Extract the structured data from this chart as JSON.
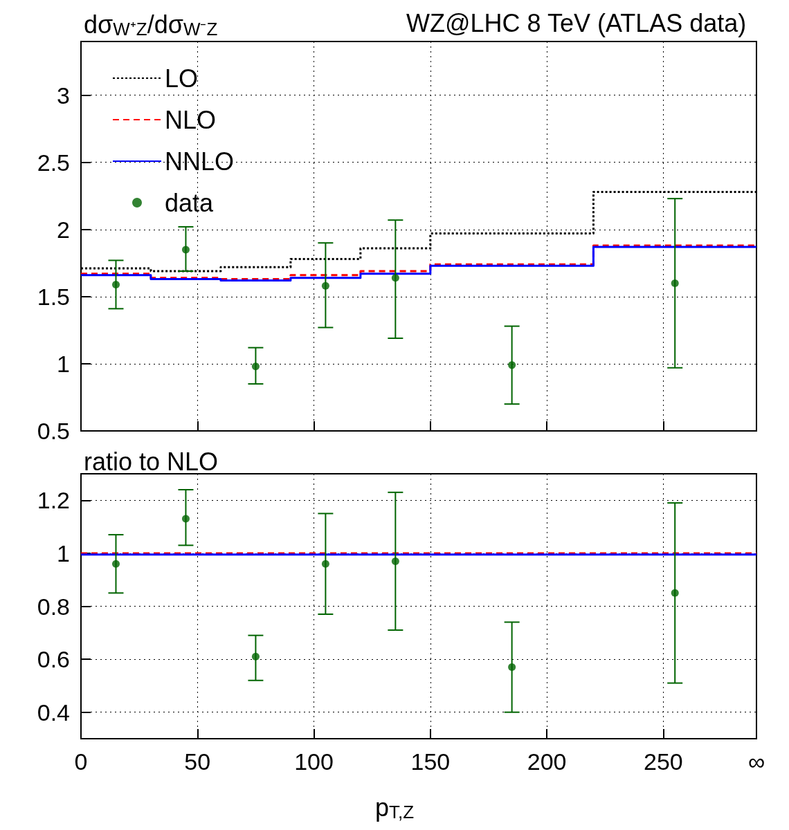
{
  "chart_data": [
    {
      "type": "step",
      "title": "WZ@LHC 8 TeV (ATLAS data)",
      "ylabel": "dσ$_{W⁺Z}$/dσ$_{W⁻Z}$",
      "xlim": [
        0,
        290
      ],
      "xticks": [
        0,
        50,
        100,
        150,
        200,
        250
      ],
      "ylim": [
        0.5,
        3.4
      ],
      "yticks": [
        0.5,
        1,
        1.5,
        2,
        2.5,
        3
      ],
      "grid": true,
      "legend": "top left",
      "tick_labels": "y",
      "series": [
        {
          "name": "LO",
          "color": "#000000",
          "line_style": "dotted",
          "marker": "none",
          "x": [
            0,
            30,
            60,
            90,
            120,
            150,
            220,
            290
          ],
          "values": [
            1.71,
            1.69,
            1.72,
            1.78,
            1.86,
            1.97,
            2.28,
            2.28
          ]
        },
        {
          "name": "NLO",
          "color": "#ff0000",
          "line_style": "dashed",
          "marker": "none",
          "x": [
            0,
            30,
            60,
            90,
            120,
            150,
            220,
            290
          ],
          "values": [
            1.67,
            1.64,
            1.63,
            1.66,
            1.69,
            1.74,
            1.88,
            1.88
          ]
        },
        {
          "name": "NNLO",
          "color": "#0000ff",
          "line_style": "solid",
          "marker": "none",
          "x": [
            0,
            30,
            60,
            90,
            120,
            150,
            220,
            290
          ],
          "values": [
            1.66,
            1.63,
            1.62,
            1.64,
            1.67,
            1.73,
            1.87,
            1.87
          ]
        },
        {
          "name": "data",
          "type": "scatter",
          "color": "#006400",
          "marker": "circle",
          "x": [
            15,
            45,
            75,
            105,
            135,
            185,
            255
          ],
          "values": [
            1.59,
            1.85,
            0.98,
            1.58,
            1.64,
            0.99,
            1.6
          ],
          "errors": [
            [
              1.41,
              1.77
            ],
            [
              1.69,
              2.02
            ],
            [
              0.85,
              1.12
            ],
            [
              1.27,
              1.9
            ],
            [
              1.19,
              2.07
            ],
            [
              0.7,
              1.28
            ],
            [
              0.97,
              2.23
            ]
          ]
        }
      ]
    },
    {
      "type": "step",
      "ylabel": "ratio to NLO",
      "xlabel": "p$_{T,Z}$",
      "xlim": [
        0,
        290
      ],
      "xticks": [
        0,
        50,
        100,
        150,
        200,
        250,
        {
          "value": 290,
          "label": "∞"
        }
      ],
      "ylim": [
        0.3,
        1.3
      ],
      "yticks": [
        0.4,
        0.6,
        0.8,
        1,
        1.2
      ],
      "grid": true,
      "series": [
        {
          "color": "#ff0000",
          "line_style": "dashed",
          "marker": "none",
          "x": [
            0,
            30,
            60,
            90,
            120,
            150,
            220,
            290
          ],
          "values": [
            1,
            1,
            1,
            1,
            1,
            1,
            1,
            1
          ]
        },
        {
          "color": "#0000ff",
          "line_style": "solid",
          "marker": "none",
          "x": [
            0,
            30,
            60,
            90,
            120,
            150,
            220,
            290
          ],
          "values": [
            0.995,
            0.995,
            0.995,
            0.995,
            0.995,
            0.995,
            0.995,
            0.995
          ]
        },
        {
          "type": "scatter",
          "color": "#006400",
          "marker": "circle",
          "x": [
            15,
            45,
            75,
            105,
            135,
            185,
            255
          ],
          "values": [
            0.96,
            1.13,
            0.61,
            0.96,
            0.97,
            0.57,
            0.85
          ],
          "errors": [
            [
              0.85,
              1.07
            ],
            [
              1.03,
              1.24
            ],
            [
              0.52,
              0.69
            ],
            [
              0.77,
              1.15
            ],
            [
              0.71,
              1.23
            ],
            [
              0.4,
              0.74
            ],
            [
              0.51,
              1.19
            ]
          ]
        }
      ]
    }
  ]
}
